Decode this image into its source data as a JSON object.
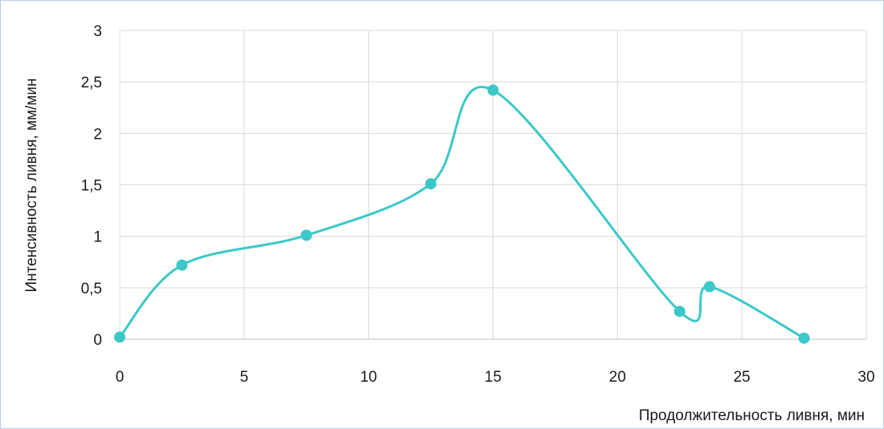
{
  "chart_data": {
    "type": "line",
    "title": "",
    "xlabel": "Продолжительность ливня, мин",
    "ylabel": "Интенсивность ливня, мм/мин",
    "xlim": [
      0,
      30
    ],
    "ylim": [
      0,
      3
    ],
    "x_ticks": [
      0,
      5,
      10,
      15,
      20,
      25,
      30
    ],
    "x_tick_labels": [
      "0",
      "5",
      "10",
      "15",
      "20",
      "25",
      "30"
    ],
    "y_ticks": [
      0,
      0.5,
      1,
      1.5,
      2,
      2.5,
      3
    ],
    "y_tick_labels": [
      "0",
      "0,5",
      "1",
      "1,5",
      "2",
      "2,5",
      "3"
    ],
    "grid": true,
    "smooth": true,
    "legend": "none",
    "series": [
      {
        "color": "#3cc8c8",
        "x": [
          0,
          2.5,
          7.5,
          12.5,
          15,
          22.5,
          23.7,
          27.5
        ],
        "y": [
          0.02,
          0.72,
          1.01,
          1.51,
          2.42,
          0.27,
          0.51,
          0.01
        ]
      }
    ]
  }
}
